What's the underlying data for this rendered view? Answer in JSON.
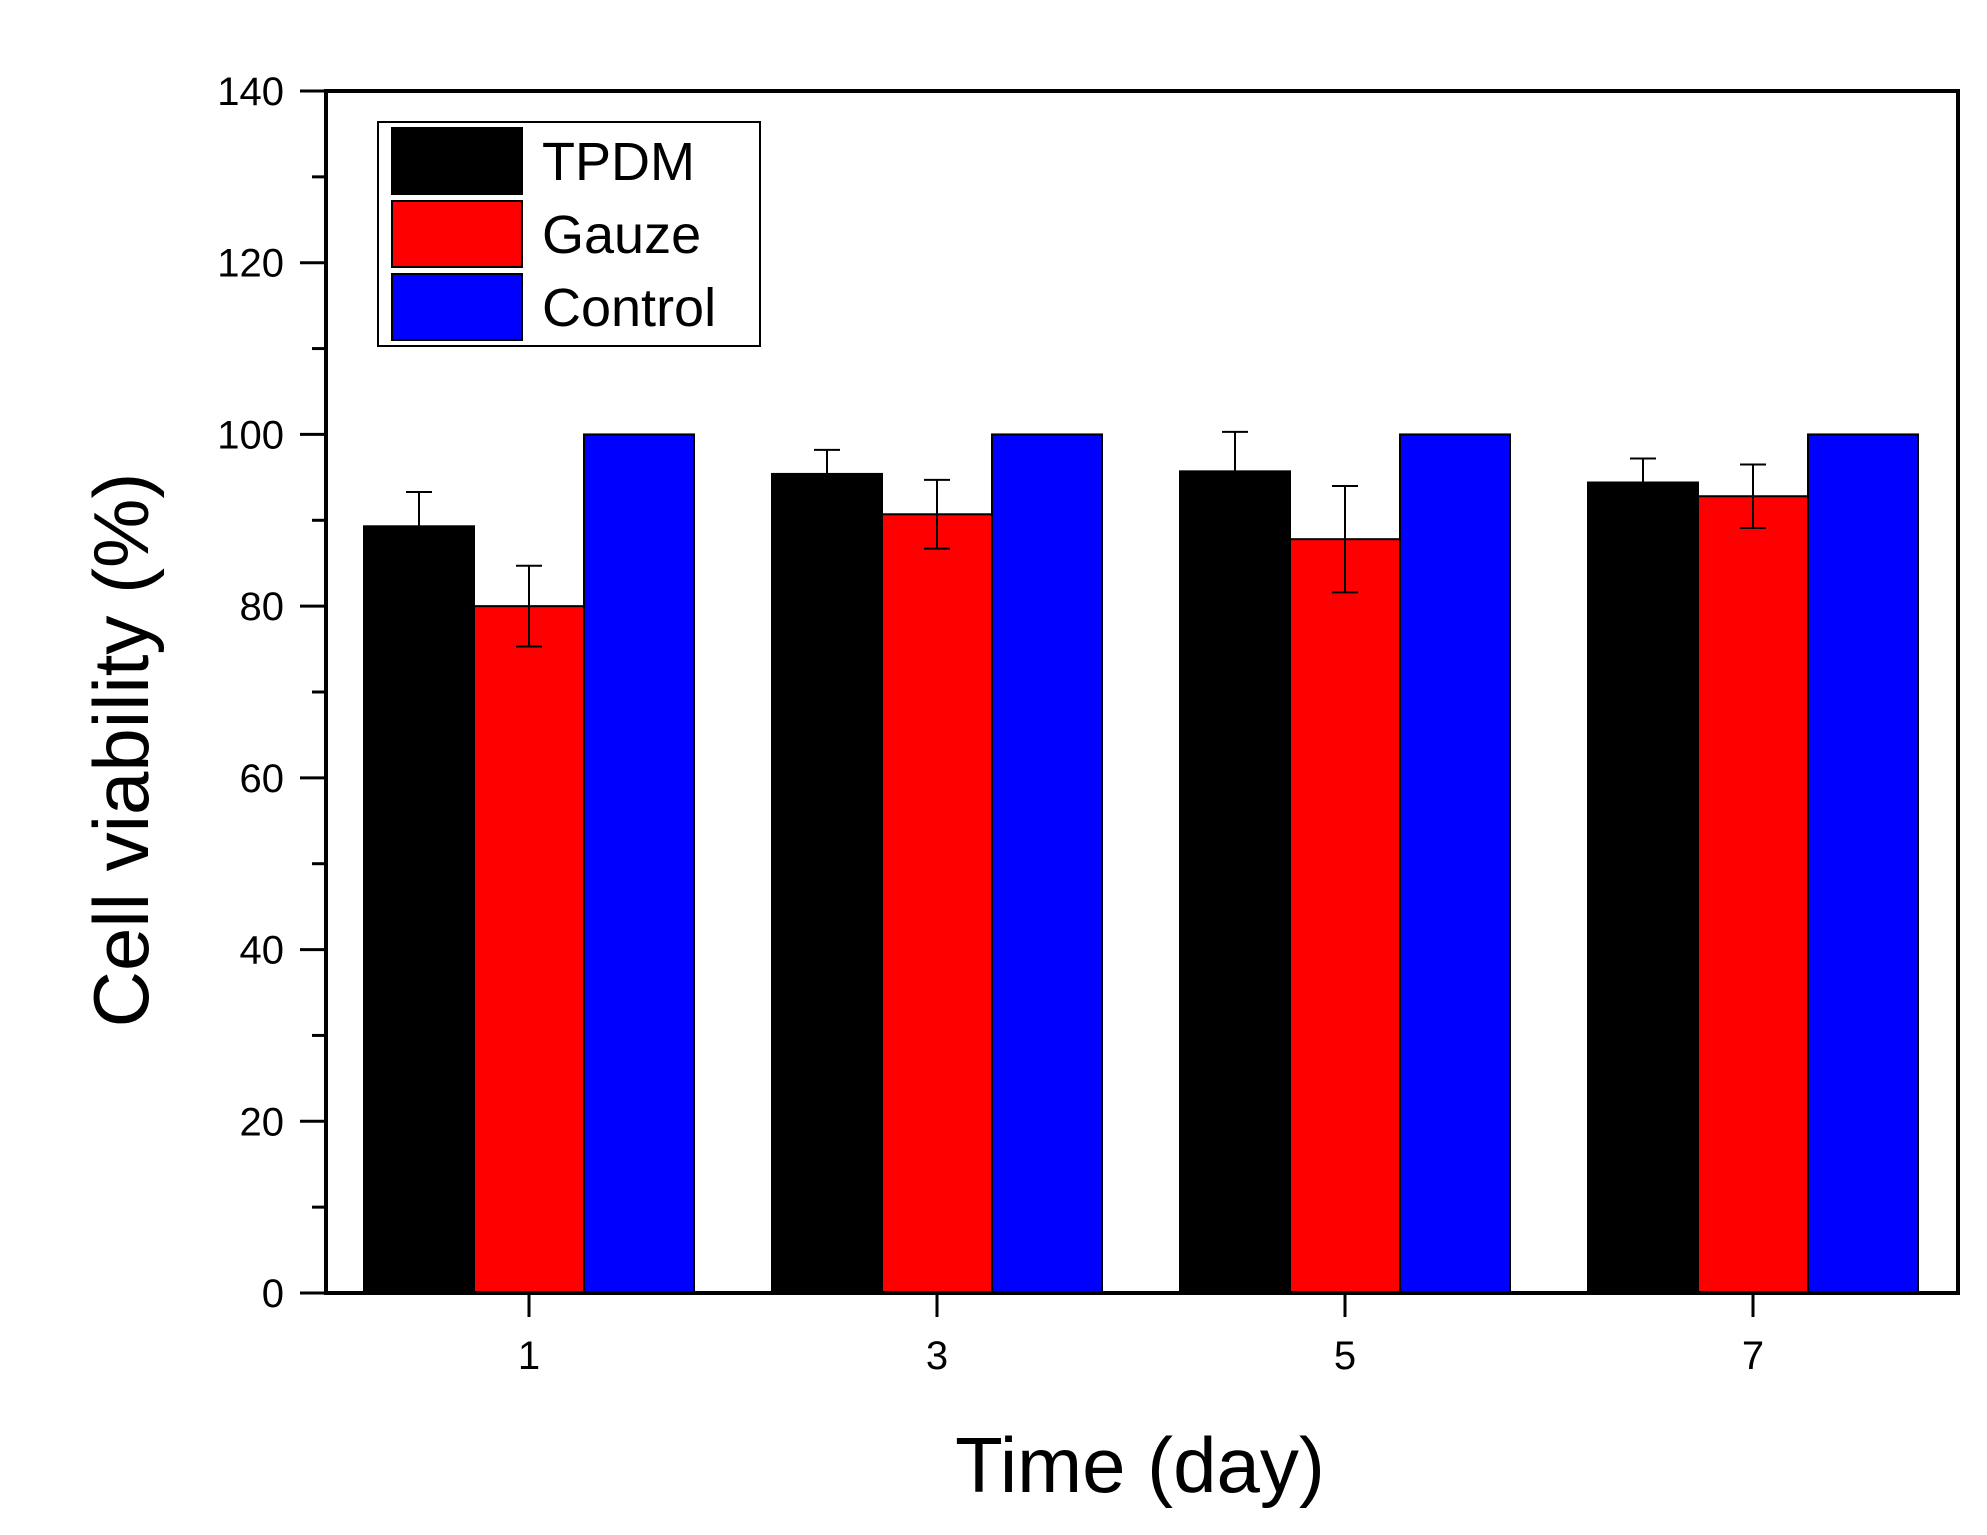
{
  "chart_data": {
    "type": "bar",
    "title": "",
    "xlabel": "Time (day)",
    "ylabel": "Cell viability (%)",
    "categories": [
      "1",
      "3",
      "5",
      "7"
    ],
    "ylim": [
      0,
      140
    ],
    "yticks": [
      0,
      20,
      40,
      60,
      80,
      100,
      120,
      140
    ],
    "grid": false,
    "legend_position": "top-left",
    "series": [
      {
        "name": "TPDM",
        "color": "#000000",
        "values": [
          89.3,
          95.4,
          95.7,
          94.4
        ],
        "errors": [
          4.0,
          2.8,
          4.6,
          2.8
        ]
      },
      {
        "name": "Gauze",
        "color": "#ff0000",
        "values": [
          80.0,
          90.7,
          87.8,
          92.8
        ],
        "errors": [
          4.7,
          4.0,
          6.2,
          3.7
        ]
      },
      {
        "name": "Control",
        "color": "#0000ff",
        "values": [
          100.0,
          100.0,
          100.0,
          100.0
        ],
        "errors": [
          0,
          0,
          0,
          0
        ]
      }
    ]
  }
}
